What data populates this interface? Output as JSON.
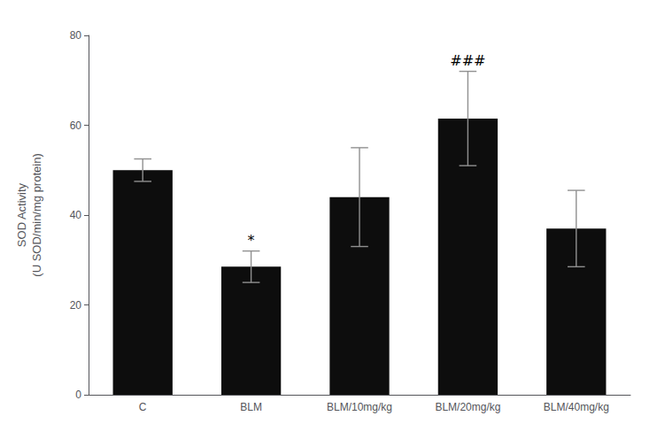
{
  "chart_data": {
    "type": "bar",
    "ylabel": "SOD Activity\n(U SOD/min/mg protein)",
    "categories": [
      "C",
      "BLM",
      "BLM/10mg/kg",
      "BLM/20mg/kg",
      "BLM/40mg/kg"
    ],
    "values": [
      50.0,
      28.5,
      44.0,
      61.5,
      37.0
    ],
    "errors": [
      2.5,
      3.5,
      11.0,
      10.5,
      8.5
    ],
    "color": "#0d0d0d",
    "error_color": "#909090",
    "annotations": [
      {
        "category": "BLM",
        "text": "*"
      },
      {
        "category": "BLM/20mg/kg",
        "text": "###"
      }
    ],
    "ylim": [
      0,
      80
    ],
    "yticks": [
      0,
      20,
      40,
      60,
      80
    ],
    "grid": false
  }
}
